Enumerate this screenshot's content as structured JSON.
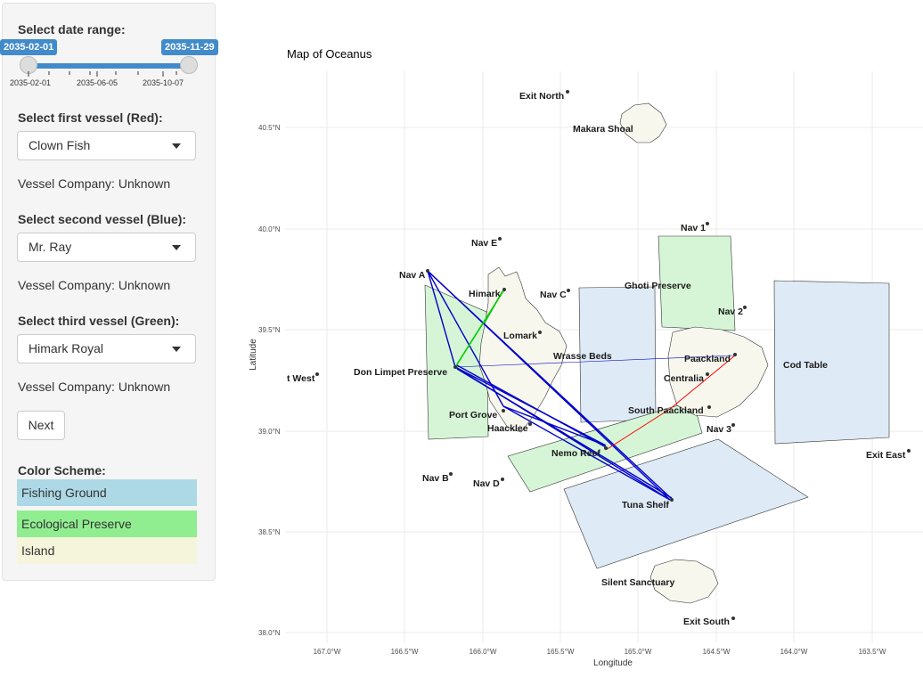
{
  "sidebar": {
    "date_range": {
      "label": "Select date range:",
      "start": "2035-02-01",
      "end": "2035-11-29",
      "ticks": [
        "2035-02-01",
        "2035-06-05",
        "2035-10-07"
      ]
    },
    "vessel1": {
      "label": "Select first vessel (Red):",
      "value": "Clown Fish",
      "company": "Vessel Company: Unknown"
    },
    "vessel2": {
      "label": "Select second vessel (Blue):",
      "value": "Mr. Ray",
      "company": "Vessel Company: Unknown"
    },
    "vessel3": {
      "label": "Select third vessel (Green):",
      "value": "Himark Royal",
      "company": "Vessel Company: Unknown"
    },
    "next_label": "Next",
    "color_scheme": {
      "label": "Color Scheme:",
      "items": [
        {
          "label": "Fishing Ground",
          "color": "#add8e6"
        },
        {
          "label": "Ecological Preserve",
          "color": "#90ee90"
        },
        {
          "label": "Island",
          "color": "#f5f5dc"
        }
      ]
    }
  },
  "map": {
    "title": "Map of Oceanus",
    "xlabel": "Longitude",
    "ylabel": "Latitude",
    "x_ticks": [
      "167.0°W",
      "166.5°W",
      "166.0°W",
      "165.5°W",
      "165.0°W",
      "164.5°W",
      "164.0°W",
      "163.5°W"
    ],
    "y_ticks": [
      "40.5°N",
      "40.0°N",
      "39.5°N",
      "39.0°N",
      "38.5°N",
      "38.0°N"
    ],
    "colors": {
      "fishing": "#deeaf5",
      "preserve": "#d6f5d6",
      "island": "#f7f7ee",
      "red": "#ff0000",
      "blue": "#0000cc",
      "green": "#00cc00"
    },
    "labels": {
      "exit_north": "Exit North",
      "makara_shoal": "Makara Shoal",
      "nav_1": "Nav 1",
      "nav_e": "Nav E",
      "nav_a": "Nav A",
      "himark": "Himark",
      "nav_c": "Nav C",
      "ghoti_preserve": "Ghoti Preserve",
      "nav_2": "Nav 2",
      "lomark": "Lomark",
      "wrasse_beds": "Wrasse Beds",
      "paackland": "Paackland",
      "cod_table": "Cod Table",
      "west_exit": "t West",
      "don_limpet": "Don Limpet Preserve",
      "centralia": "Centralia",
      "port_grove": "Port Grove",
      "south_paackland": "South Paackland",
      "haacklee": "Haacklee",
      "nav_3": "Nav 3",
      "nemo_reef": "Nemo Reef",
      "exit_east": "Exit East",
      "nav_b": "Nav B",
      "nav_d": "Nav D",
      "tuna_shelf": "Tuna Shelf",
      "silent_sanctuary": "Silent Sanctuary",
      "exit_south": "Exit South"
    }
  }
}
